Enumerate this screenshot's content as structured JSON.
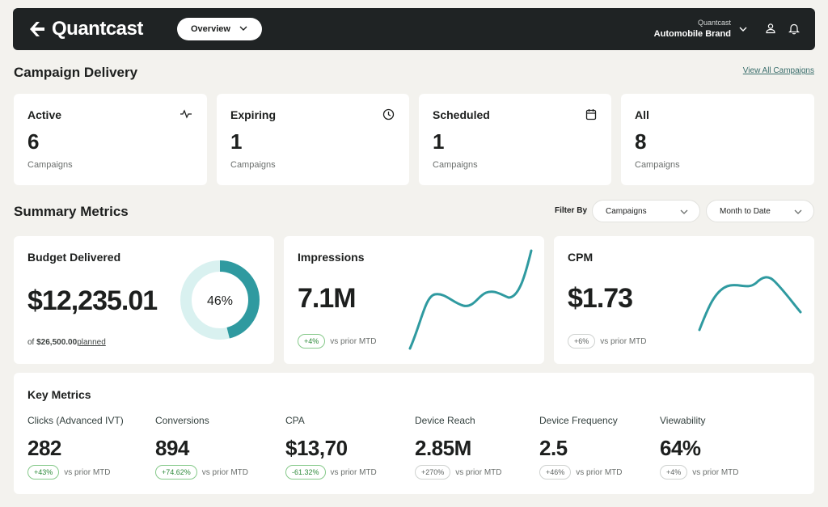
{
  "header": {
    "logo_text": "Quantcast",
    "view_select": "Overview",
    "account_org": "Quantcast",
    "account_brand": "Automobile Brand"
  },
  "delivery": {
    "title": "Campaign Delivery",
    "view_all": "View All Campaigns",
    "cards": [
      {
        "title": "Active",
        "count": "6",
        "sub": "Campaigns",
        "icon": "activity-icon"
      },
      {
        "title": "Expiring",
        "count": "1",
        "sub": "Campaigns",
        "icon": "clock-icon"
      },
      {
        "title": "Scheduled",
        "count": "1",
        "sub": "Campaigns",
        "icon": "calendar-icon"
      },
      {
        "title": "All",
        "count": "8",
        "sub": "Campaigns",
        "icon": ""
      }
    ]
  },
  "summary": {
    "title": "Summary Metrics",
    "filter_label": "Filter By",
    "filter_campaigns": "Campaigns",
    "filter_period": "Month to Date",
    "budget": {
      "title": "Budget Delivered",
      "value": "$12,235.01",
      "planned_prefix": "of",
      "planned_amount": "$26,500.00",
      "planned_suffix": "planned",
      "percent_label": "46%",
      "percent": 46
    },
    "impressions": {
      "title": "Impressions",
      "value": "7.1M",
      "change": "+4%",
      "vs": "vs prior MTD"
    },
    "cpm": {
      "title": "CPM",
      "value": "$1.73",
      "change": "+6%",
      "vs": "vs prior MTD"
    }
  },
  "key_metrics": {
    "title": "Key Metrics",
    "items": [
      {
        "label": "Clicks (Advanced IVT)",
        "value": "282",
        "change": "+43%",
        "vs": "vs prior MTD",
        "positive": true
      },
      {
        "label": "Conversions",
        "value": "894",
        "change": "+74.62%",
        "vs": "vs prior MTD",
        "positive": true
      },
      {
        "label": "CPA",
        "value": "$13,70",
        "change": "-61.32%",
        "vs": "vs prior MTD",
        "positive": true
      },
      {
        "label": "Device Reach",
        "value": "2.85M",
        "change": "+270%",
        "vs": "vs prior MTD",
        "positive": false
      },
      {
        "label": "Device Frequency",
        "value": "2.5",
        "change": "+46%",
        "vs": "vs prior MTD",
        "positive": false
      },
      {
        "label": "Viewability",
        "value": "64%",
        "change": "+4%",
        "vs": "vs prior MTD",
        "positive": false
      }
    ]
  },
  "colors": {
    "accent": "#2f9aa0",
    "ring_track": "#d9f1f0",
    "header_bg": "#1f2324",
    "positive": "#2f8a3b"
  }
}
